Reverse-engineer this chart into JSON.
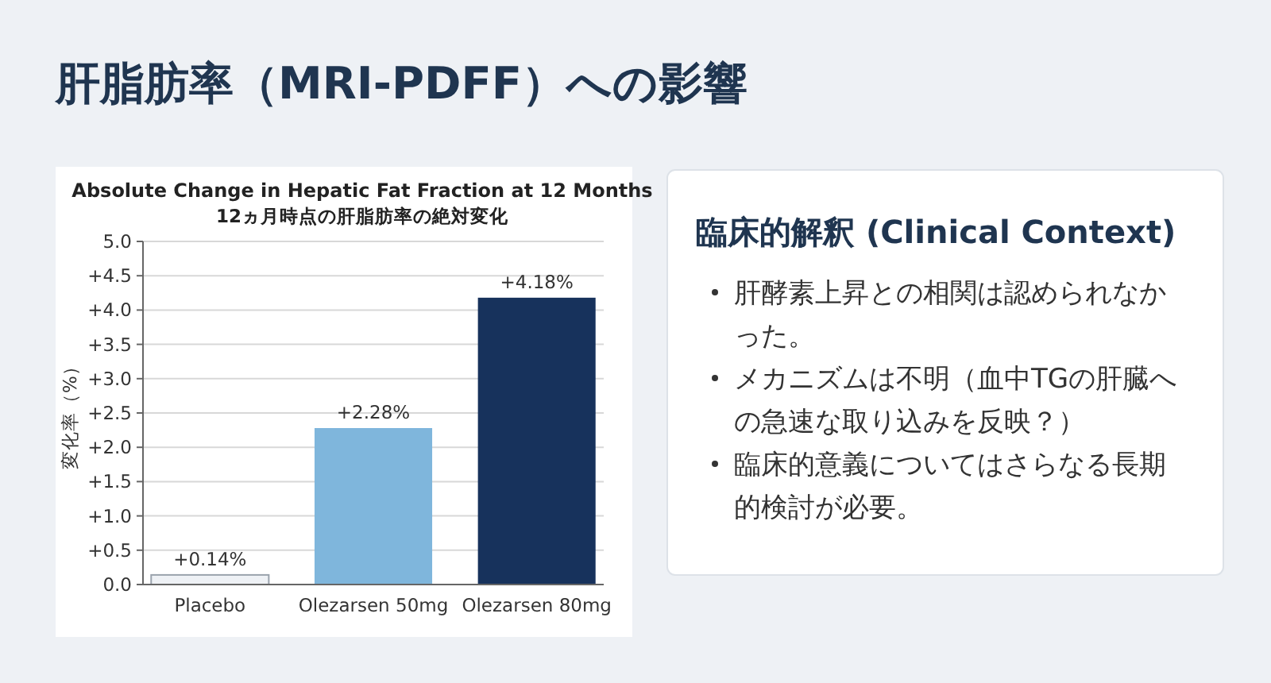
{
  "chart_data": [
    {
      "type": "other",
      "title": "肝脂肪率（MRI-PDFF）への影響"
    },
    {
      "type": "bar",
      "title": "Absolute Change in Hepatic Fat Fraction at 12 Months",
      "subtitle": "12ヵ月時点の肝脂肪率の絶対変化",
      "ylabel": "変化率（%）",
      "categories": [
        "Placebo",
        "Olezarsen 50mg",
        "Olezarsen 80mg"
      ],
      "values": [
        0.14,
        2.28,
        4.18
      ],
      "colors": [
        "#eef1f5",
        "#7fb6dc",
        "#17325c"
      ],
      "value_labels": [
        "+0.14%",
        "+2.28%",
        "+4.18%"
      ],
      "ylim": [
        0,
        5
      ],
      "yticks": [
        {
          "value": 0,
          "label": "0.0"
        },
        {
          "value": 0.5,
          "label": "+0.5"
        },
        {
          "value": 1,
          "label": "+1.0"
        },
        {
          "value": 1.5,
          "label": "+1.5"
        },
        {
          "value": 2,
          "label": "+2.0"
        },
        {
          "value": 2.5,
          "label": "+2.5"
        },
        {
          "value": 3,
          "label": "+3.0"
        },
        {
          "value": 3.5,
          "label": "+3.5"
        },
        {
          "value": 4,
          "label": "+4.0"
        },
        {
          "value": 4.5,
          "label": "+4.5"
        },
        {
          "value": 5,
          "label": "5.0"
        }
      ],
      "grid": "y"
    },
    {
      "type": "other",
      "title": "臨床的解釈 (Clinical Context)",
      "annotations": [
        "肝酵素上昇との相関は認められなかった。",
        "メカニズムは不明（血中TGの肝臓への急速な取り込みを反映？）",
        "臨床的意義についてはさらなる長期的検討が必要。"
      ]
    }
  ]
}
